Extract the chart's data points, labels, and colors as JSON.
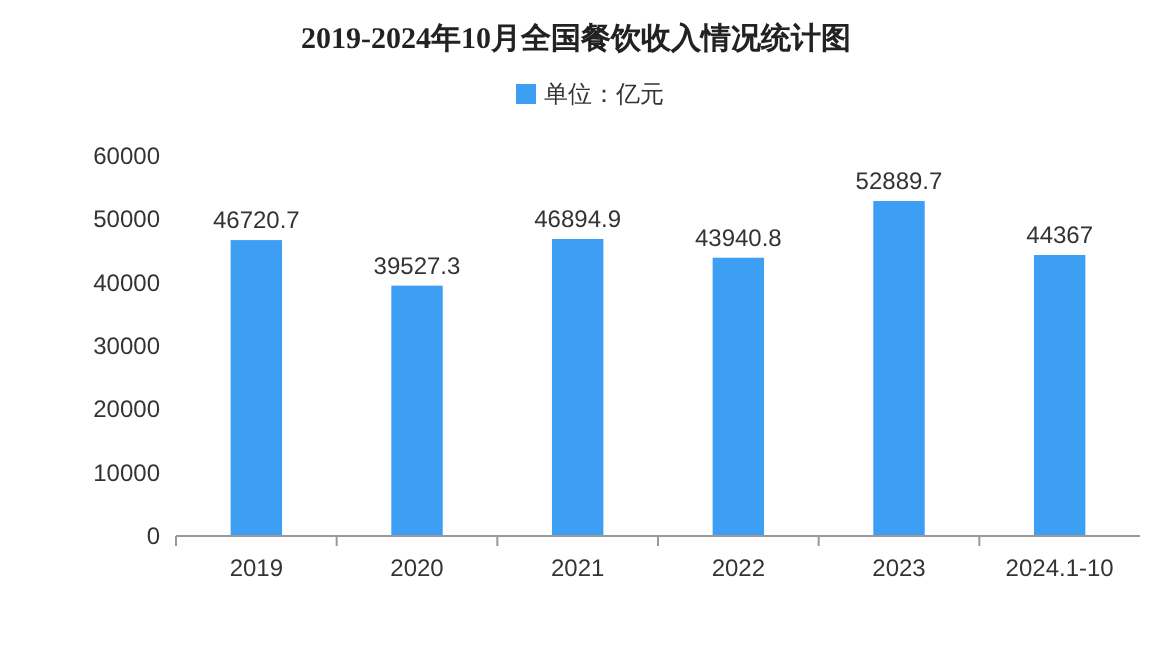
{
  "chart_data": {
    "type": "bar",
    "title": "2019-2024年10月全国餐饮收入情况统计图",
    "categories": [
      "2019",
      "2020",
      "2021",
      "2022",
      "2023",
      "2024.1-10"
    ],
    "series": [
      {
        "name": "单位：亿元",
        "color": "#3d9ff3",
        "values": [
          46720.7,
          39527.3,
          46894.9,
          43940.8,
          52889.7,
          44367
        ]
      }
    ],
    "ylim": [
      0,
      60000
    ],
    "yticks": [
      0,
      10000,
      20000,
      30000,
      40000,
      50000,
      60000
    ],
    "data_labels": true,
    "legend": "top",
    "grid": false
  }
}
